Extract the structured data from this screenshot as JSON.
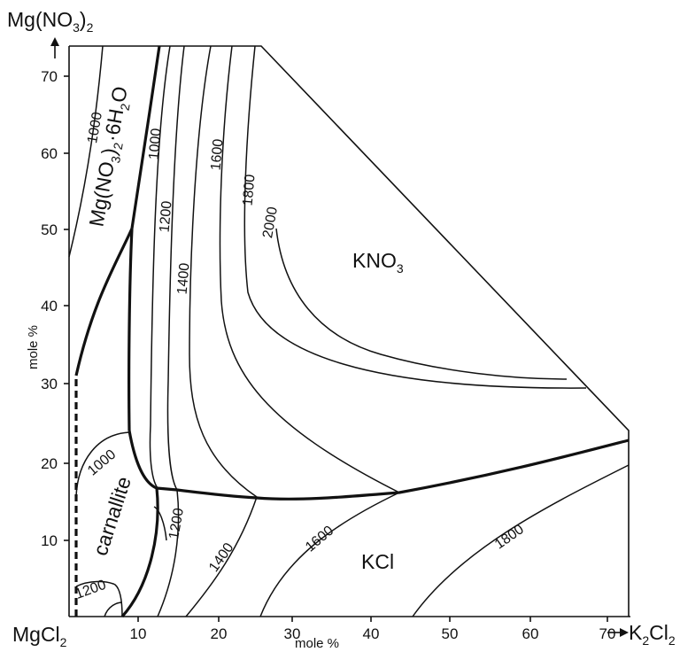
{
  "axes": {
    "y_ticks": [
      "10",
      "20",
      "30",
      "40",
      "50",
      "60",
      "70"
    ],
    "x_ticks": [
      "10",
      "20",
      "30",
      "40",
      "50",
      "60",
      "70"
    ],
    "y_label": "mole %",
    "x_label": "mole %",
    "top_corner": {
      "main": "Mg(NO",
      "sub1": "3",
      "mid": ")",
      "sub2": "2"
    },
    "bottom_left_corner": {
      "main": "MgCl",
      "sub": "2"
    },
    "bottom_right_corner": {
      "main": "K",
      "sub1": "2",
      "mid": "Cl",
      "sub2": "2"
    }
  },
  "fields": {
    "kno3": {
      "main": "KNO",
      "sub": "3"
    },
    "kcl": "KCl",
    "carnallite": "carnallite",
    "mg_hydrate": {
      "a": "Mg(NO",
      "b": "3",
      "c": ")",
      "d": "2",
      "e": "·6H",
      "f": "2",
      "g": "O"
    }
  },
  "isotherms": {
    "a": "1000",
    "b": "1000",
    "c": "1200",
    "d": "1400",
    "e": "1600",
    "f": "1800",
    "g": "2000",
    "h": "1000",
    "i": "1200",
    "j": "1200",
    "k": "1400",
    "l": "1600",
    "m": "1800"
  }
}
